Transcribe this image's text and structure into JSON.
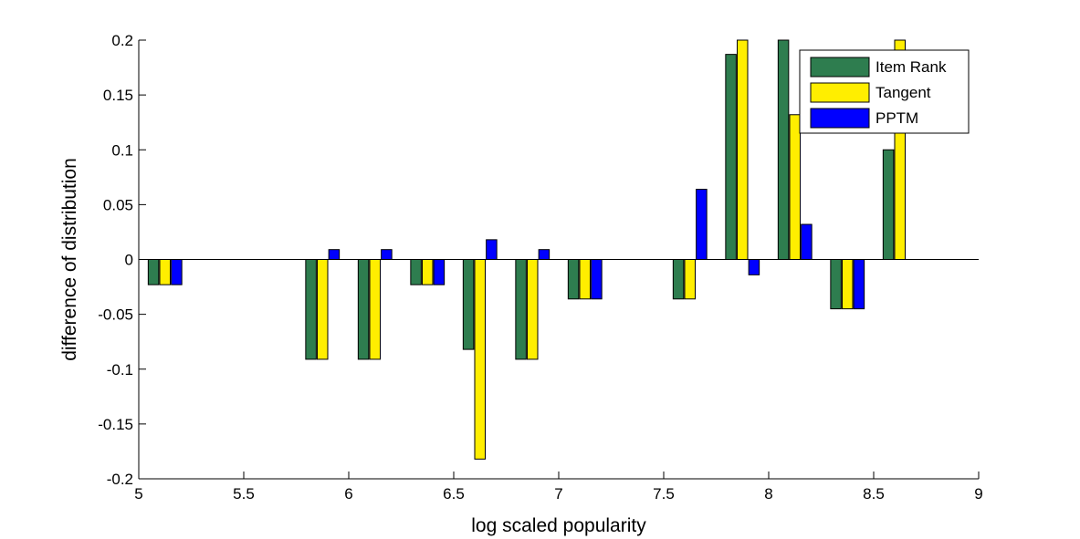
{
  "chart_data": {
    "type": "bar",
    "title": "",
    "xlabel": "log scaled popularity",
    "ylabel": "difference of distribution",
    "xlim": [
      5,
      9
    ],
    "ylim": [
      -0.2,
      0.2
    ],
    "xticks": [
      5,
      5.5,
      6,
      6.5,
      7,
      7.5,
      8,
      8.5,
      9
    ],
    "yticks": [
      -0.2,
      -0.15,
      -0.1,
      -0.05,
      0,
      0.05,
      0.1,
      0.15,
      0.2
    ],
    "xtick_labels": [
      "5",
      "5.5",
      "6",
      "6.5",
      "7",
      "7.5",
      "8",
      "8.5",
      "9"
    ],
    "ytick_labels": [
      "-0.2",
      "-0.15",
      "-0.1",
      "-0.05",
      "0",
      "0.05",
      "0.1",
      "0.15",
      "0.2"
    ],
    "grid": false,
    "legend_position": "top-right",
    "bar_width": 0.05,
    "x": [
      5.125,
      5.875,
      6.125,
      6.375,
      6.625,
      6.875,
      7.125,
      7.625,
      7.875,
      8.125,
      8.375,
      8.625
    ],
    "series": [
      {
        "name": "Item Rank",
        "color": "#2e7d4f",
        "values": [
          -0.023,
          -0.091,
          -0.091,
          -0.023,
          -0.082,
          -0.091,
          -0.036,
          -0.036,
          0.187,
          0.2,
          -0.045,
          0.1
        ]
      },
      {
        "name": "Tangent",
        "color": "#ffee00",
        "values": [
          -0.023,
          -0.091,
          -0.091,
          -0.023,
          -0.182,
          -0.091,
          -0.036,
          -0.036,
          0.2,
          0.132,
          -0.045,
          0.2
        ]
      },
      {
        "name": "PPTM",
        "color": "#0000ff",
        "values": [
          -0.023,
          0.009,
          0.009,
          -0.023,
          0.018,
          0.009,
          -0.036,
          0.064,
          -0.014,
          0.032,
          -0.045,
          0
        ]
      }
    ]
  }
}
